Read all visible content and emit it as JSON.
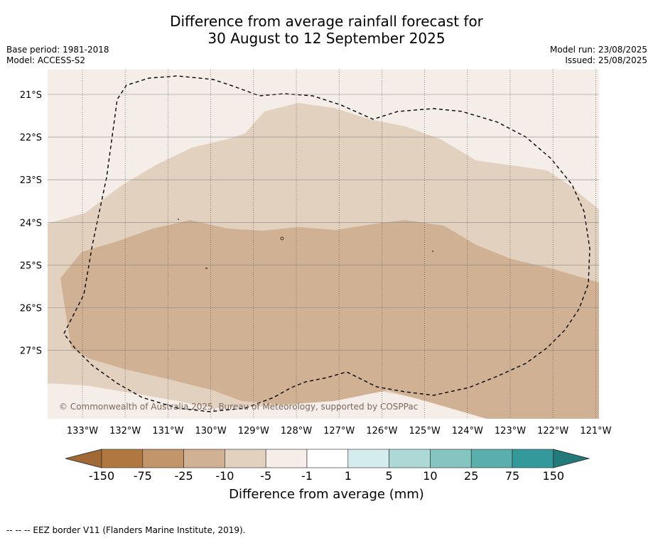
{
  "header": {
    "title_line1": "Difference from average rainfall forecast for",
    "title_line2": "30 August to 12 September 2025",
    "base_period": "Base period: 1981-2018",
    "model": "Model: ACCESS-S2",
    "model_run": "Model run: 23/08/2025",
    "issued": "Issued: 25/08/2025"
  },
  "map": {
    "copyright": "© Commonwealth of Australia 2025, Bureau of Meteorology, supported by COSPPac",
    "lon_labels": [
      "133°W",
      "132°W",
      "131°W",
      "130°W",
      "129°W",
      "128°W",
      "127°W",
      "126°W",
      "125°W",
      "124°W",
      "123°W",
      "122°W",
      "121°W"
    ],
    "lat_labels": [
      "21°S",
      "22°S",
      "23°S",
      "24°S",
      "25°S",
      "26°S",
      "27°S"
    ],
    "colors": {
      "bin_neg1_neg5": "#f5ede7",
      "bin_neg5_neg10": "#e3d1c0",
      "bin_neg10_neg25": "#d0b193"
    }
  },
  "colorbar": {
    "ticks": [
      "-150",
      "-75",
      "-25",
      "-10",
      "-5",
      "-1",
      "1",
      "5",
      "10",
      "25",
      "75",
      "150"
    ],
    "colors": [
      "#a16a35",
      "#b07840",
      "#c2956a",
      "#d0b193",
      "#e3d1c0",
      "#f5ede7",
      "#ffffff",
      "#d4eceb",
      "#acd8d6",
      "#84c4c1",
      "#5aaeab",
      "#34999a",
      "#237a7a"
    ],
    "title": "Difference from average (mm)"
  },
  "footnote": "--  --  -- EEZ border V11 (Flanders Marine Institute, 2019)."
}
